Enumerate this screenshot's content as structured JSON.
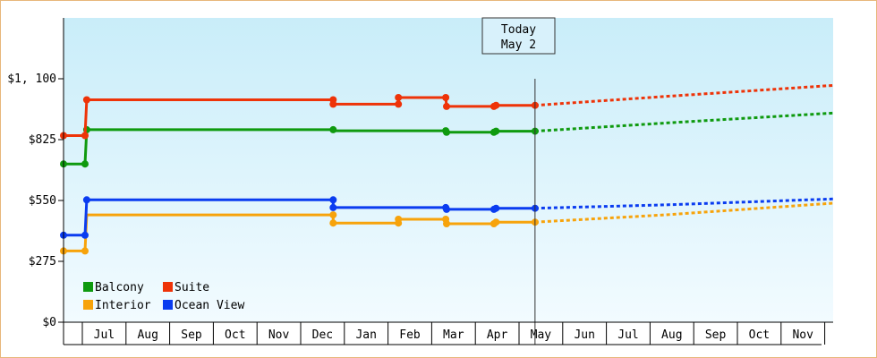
{
  "chart_data": {
    "type": "line",
    "y_axis": {
      "ticks": [
        {
          "value": 0,
          "label": "$0"
        },
        {
          "value": 275,
          "label": "$275"
        },
        {
          "value": 550,
          "label": "$550"
        },
        {
          "value": 825,
          "label": "$825"
        },
        {
          "value": 1100,
          "label": "$1, 100"
        }
      ],
      "ylim": [
        0,
        1375
      ]
    },
    "x_axis": {
      "months": [
        "Jul",
        "Aug",
        "Sep",
        "Oct",
        "Nov",
        "Dec",
        "Jan",
        "Feb",
        "Mar",
        "Apr",
        "May",
        "Jun",
        "Jul",
        "Aug",
        "Sep",
        "Oct",
        "Nov"
      ],
      "xlim": [
        -0.73,
        16.85
      ]
    },
    "today": {
      "line1": "Today",
      "line2": "May 2",
      "x": 10.04
    },
    "grid": false,
    "legend_position": "bottom-left",
    "series": [
      {
        "name": "Balcony",
        "color": "#0f9a0f",
        "points": [
          [
            -0.73,
            715
          ],
          [
            -0.24,
            715
          ],
          [
            -0.2,
            870
          ],
          [
            5.43,
            870
          ],
          [
            5.43,
            865
          ],
          [
            8.0,
            865
          ],
          [
            8.02,
            858
          ],
          [
            9.1,
            858
          ],
          [
            9.15,
            863
          ],
          [
            10.04,
            863
          ]
        ],
        "forecast": [
          [
            10.04,
            863
          ],
          [
            13.0,
            900
          ],
          [
            16.85,
            945
          ]
        ]
      },
      {
        "name": "Suite",
        "color": "#ee3308",
        "points": [
          [
            -0.73,
            843
          ],
          [
            -0.24,
            843
          ],
          [
            -0.2,
            1005
          ],
          [
            5.43,
            1005
          ],
          [
            5.43,
            985
          ],
          [
            6.92,
            985
          ],
          [
            6.92,
            1015
          ],
          [
            8.0,
            1015
          ],
          [
            8.02,
            975
          ],
          [
            9.1,
            975
          ],
          [
            9.15,
            980
          ],
          [
            10.04,
            980
          ]
        ],
        "forecast": [
          [
            10.04,
            980
          ],
          [
            13.0,
            1020
          ],
          [
            16.85,
            1070
          ]
        ]
      },
      {
        "name": "Interior",
        "color": "#f7a30b",
        "points": [
          [
            -0.73,
            322
          ],
          [
            -0.24,
            322
          ],
          [
            -0.2,
            485
          ],
          [
            5.43,
            485
          ],
          [
            5.43,
            448
          ],
          [
            6.92,
            448
          ],
          [
            6.92,
            465
          ],
          [
            8.0,
            465
          ],
          [
            8.02,
            445
          ],
          [
            9.1,
            445
          ],
          [
            9.15,
            452
          ],
          [
            10.04,
            452
          ]
        ],
        "forecast": [
          [
            10.04,
            452
          ],
          [
            13.0,
            485
          ],
          [
            16.85,
            538
          ]
        ]
      },
      {
        "name": "Ocean View",
        "color": "#0a3cf0",
        "points": [
          [
            -0.73,
            393
          ],
          [
            -0.24,
            393
          ],
          [
            -0.2,
            553
          ],
          [
            5.43,
            553
          ],
          [
            5.43,
            518
          ],
          [
            8.0,
            518
          ],
          [
            8.02,
            510
          ],
          [
            9.1,
            510
          ],
          [
            9.15,
            515
          ],
          [
            10.04,
            515
          ]
        ],
        "forecast": [
          [
            10.04,
            515
          ],
          [
            13.0,
            530
          ],
          [
            16.85,
            557
          ]
        ]
      }
    ],
    "markers": {
      "Balcony": [
        [
          -0.73,
          715
        ],
        [
          -0.24,
          715
        ],
        [
          -0.2,
          870
        ],
        [
          5.43,
          870
        ],
        [
          8.0,
          865
        ],
        [
          8.02,
          858
        ],
        [
          9.1,
          858
        ],
        [
          9.15,
          863
        ],
        [
          10.04,
          863
        ]
      ],
      "Suite": [
        [
          -0.73,
          843
        ],
        [
          -0.24,
          843
        ],
        [
          -0.2,
          1005
        ],
        [
          5.43,
          1005
        ],
        [
          5.43,
          985
        ],
        [
          6.92,
          985
        ],
        [
          6.92,
          1015
        ],
        [
          8.0,
          1015
        ],
        [
          8.02,
          975
        ],
        [
          9.1,
          975
        ],
        [
          9.15,
          980
        ],
        [
          10.04,
          980
        ]
      ],
      "Interior": [
        [
          -0.73,
          322
        ],
        [
          -0.24,
          322
        ],
        [
          5.43,
          485
        ],
        [
          5.43,
          448
        ],
        [
          6.92,
          448
        ],
        [
          6.92,
          465
        ],
        [
          8.0,
          465
        ],
        [
          8.02,
          445
        ],
        [
          9.1,
          445
        ],
        [
          9.15,
          452
        ],
        [
          10.04,
          452
        ]
      ],
      "Ocean View": [
        [
          -0.73,
          393
        ],
        [
          -0.24,
          393
        ],
        [
          -0.2,
          553
        ],
        [
          5.43,
          553
        ],
        [
          5.43,
          518
        ],
        [
          8.0,
          518
        ],
        [
          8.02,
          510
        ],
        [
          9.1,
          510
        ],
        [
          9.15,
          515
        ],
        [
          10.04,
          515
        ]
      ]
    },
    "colors": {
      "plot_top": "#c9edf9",
      "plot_bottom": "#f2fbff",
      "axis": "#000000",
      "frame": "#e8b77a"
    }
  }
}
